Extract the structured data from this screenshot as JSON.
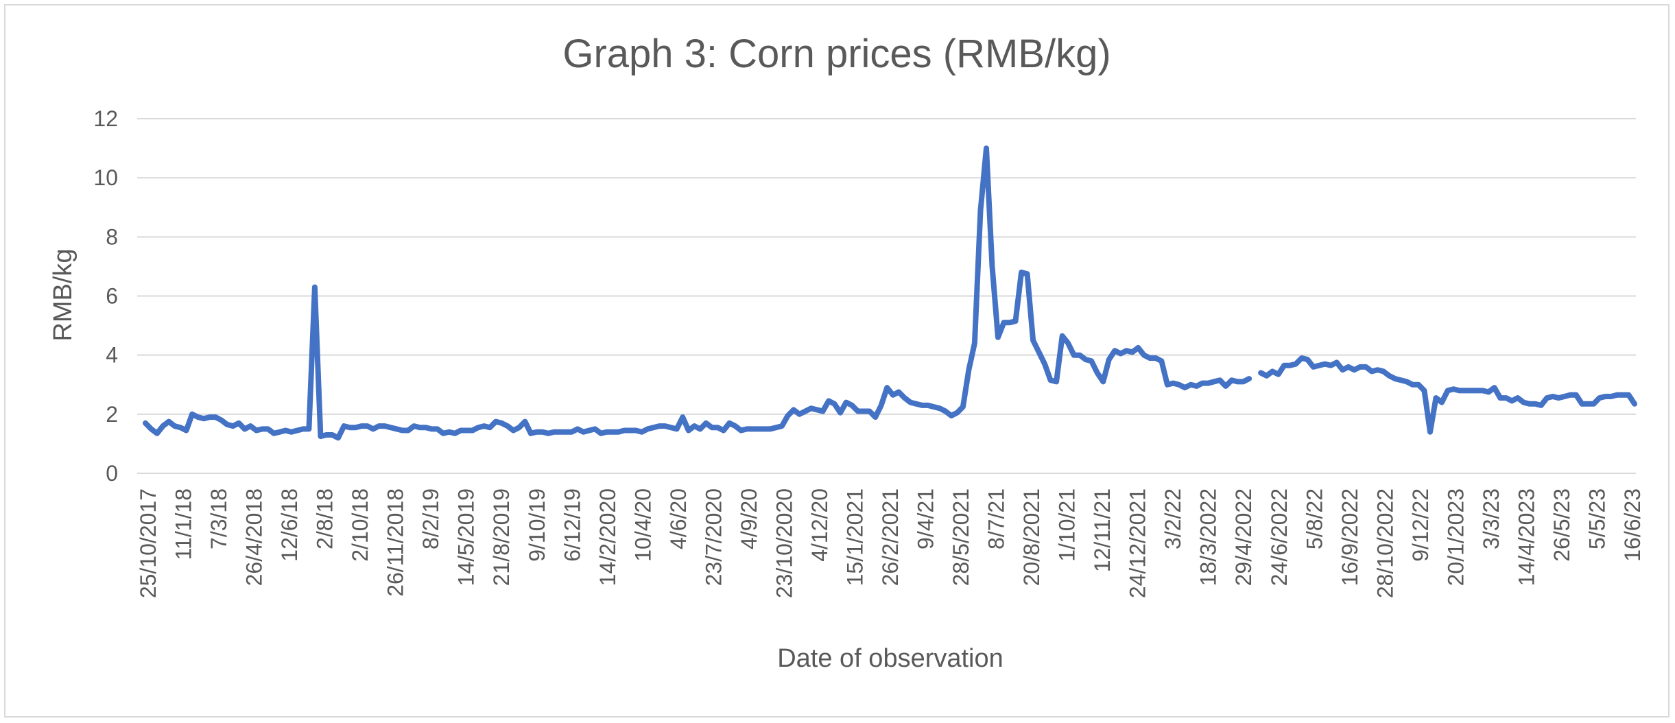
{
  "chart_data": {
    "type": "line",
    "title": "Graph 3: Corn prices (RMB/kg)",
    "xlabel": "Date of observation",
    "ylabel": "RMB/kg",
    "ylim": [
      0,
      12
    ],
    "y_ticks": [
      0,
      2,
      4,
      6,
      8,
      10,
      12
    ],
    "grid": true,
    "legend": "none",
    "line_color": "#4472c4",
    "x_tick_labels": [
      "25/10/2017",
      "11/1/18",
      "7/3/18",
      "26/4/2018",
      "12/6/18",
      "2/8/18",
      "2/10/18",
      "26/11/2018",
      "8/2/19",
      "14/5/2019",
      "21/8/2019",
      "9/10/19",
      "6/12/19",
      "14/2/2020",
      "10/4/20",
      "4/6/20",
      "23/7/2020",
      "4/9/20",
      "23/10/2020",
      "4/12/20",
      "15/1/2021",
      "26/2/2021",
      "9/4/21",
      "28/5/2021",
      "8/7/21",
      "20/8/2021",
      "1/10/21",
      "12/11/21",
      "24/12/2021",
      "3/2/22",
      "18/3/2022",
      "29/4/2022",
      "24/6/2022",
      "5/8/22",
      "16/9/2022",
      "28/10/2022",
      "9/12/22",
      "20/1/2023",
      "3/3/23",
      "14/4/2023",
      "26/5/23",
      "5/5/23",
      "16/6/23"
    ],
    "series": [
      {
        "values": [
          1.7,
          1.5,
          1.35,
          1.6,
          1.75,
          1.6,
          1.55,
          1.45,
          2.0,
          1.9,
          1.85,
          1.9,
          1.9,
          1.8,
          1.65,
          1.6,
          1.7,
          1.5,
          1.6,
          1.45,
          1.5,
          1.5,
          1.35,
          1.4,
          1.45,
          1.4,
          1.45,
          1.5,
          1.5,
          6.3,
          1.25,
          1.3,
          1.3,
          1.2,
          1.6,
          1.55,
          1.55,
          1.6,
          1.6,
          1.5,
          1.6,
          1.6,
          1.55,
          1.5,
          1.45,
          1.45,
          1.6,
          1.55,
          1.55,
          1.5,
          1.5,
          1.35,
          1.4,
          1.35,
          1.45,
          1.45,
          1.45,
          1.55,
          1.6,
          1.55,
          1.75,
          1.7,
          1.6,
          1.45,
          1.55,
          1.75,
          1.35,
          1.4,
          1.4,
          1.35,
          1.4,
          1.4,
          1.4,
          1.4,
          1.5,
          1.4,
          1.45,
          1.5,
          1.35,
          1.4,
          1.4,
          1.4,
          1.45,
          1.45,
          1.45,
          1.4,
          1.5,
          1.55,
          1.6,
          1.6,
          1.55,
          1.5,
          1.9,
          1.45,
          1.6,
          1.5,
          1.7,
          1.55,
          1.55,
          1.45,
          1.7,
          1.6,
          1.45,
          1.5,
          1.5,
          1.5,
          1.5,
          1.5,
          1.55,
          1.6,
          1.95,
          2.15,
          2.0,
          2.1,
          2.2,
          2.15,
          2.1,
          2.45,
          2.35,
          2.05,
          2.4,
          2.3,
          2.1,
          2.1,
          2.1,
          1.9,
          2.3,
          2.9,
          2.65,
          2.75,
          2.55,
          2.4,
          2.35,
          2.3,
          2.3,
          2.25,
          2.2,
          2.1,
          1.95,
          2.05,
          2.25,
          3.5,
          4.4,
          8.9,
          11.0,
          7.0,
          4.6,
          5.1,
          5.1,
          5.15,
          6.8,
          6.75,
          4.5,
          4.1,
          3.7,
          3.15,
          3.1,
          4.65,
          4.4,
          4.0,
          4.0,
          3.85,
          3.8,
          3.4,
          3.1,
          3.85,
          4.15,
          4.05,
          4.15,
          4.1,
          4.25,
          4.0,
          3.9,
          3.9,
          3.8,
          3.0,
          3.05,
          3.0,
          2.9,
          3.0,
          2.95,
          3.05,
          3.05,
          3.1,
          3.15,
          2.95,
          3.15,
          3.1,
          3.1,
          3.2,
          null,
          3.4,
          3.3,
          3.45,
          3.35,
          3.65,
          3.65,
          3.7,
          3.9,
          3.85,
          3.6,
          3.65,
          3.7,
          3.65,
          3.75,
          3.5,
          3.6,
          3.5,
          3.6,
          3.6,
          3.45,
          3.5,
          3.45,
          3.3,
          3.2,
          3.15,
          3.1,
          3.0,
          3.0,
          2.8,
          1.4,
          2.55,
          2.4,
          2.8,
          2.85,
          2.8,
          2.8,
          2.8,
          2.8,
          2.8,
          2.75,
          2.9,
          2.55,
          2.55,
          2.45,
          2.55,
          2.4,
          2.35,
          2.35,
          2.3,
          2.55,
          2.6,
          2.55,
          2.6,
          2.65,
          2.65,
          2.35,
          2.35,
          2.35,
          2.55,
          2.6,
          2.6,
          2.65,
          2.65,
          2.65,
          2.35
        ]
      }
    ]
  }
}
